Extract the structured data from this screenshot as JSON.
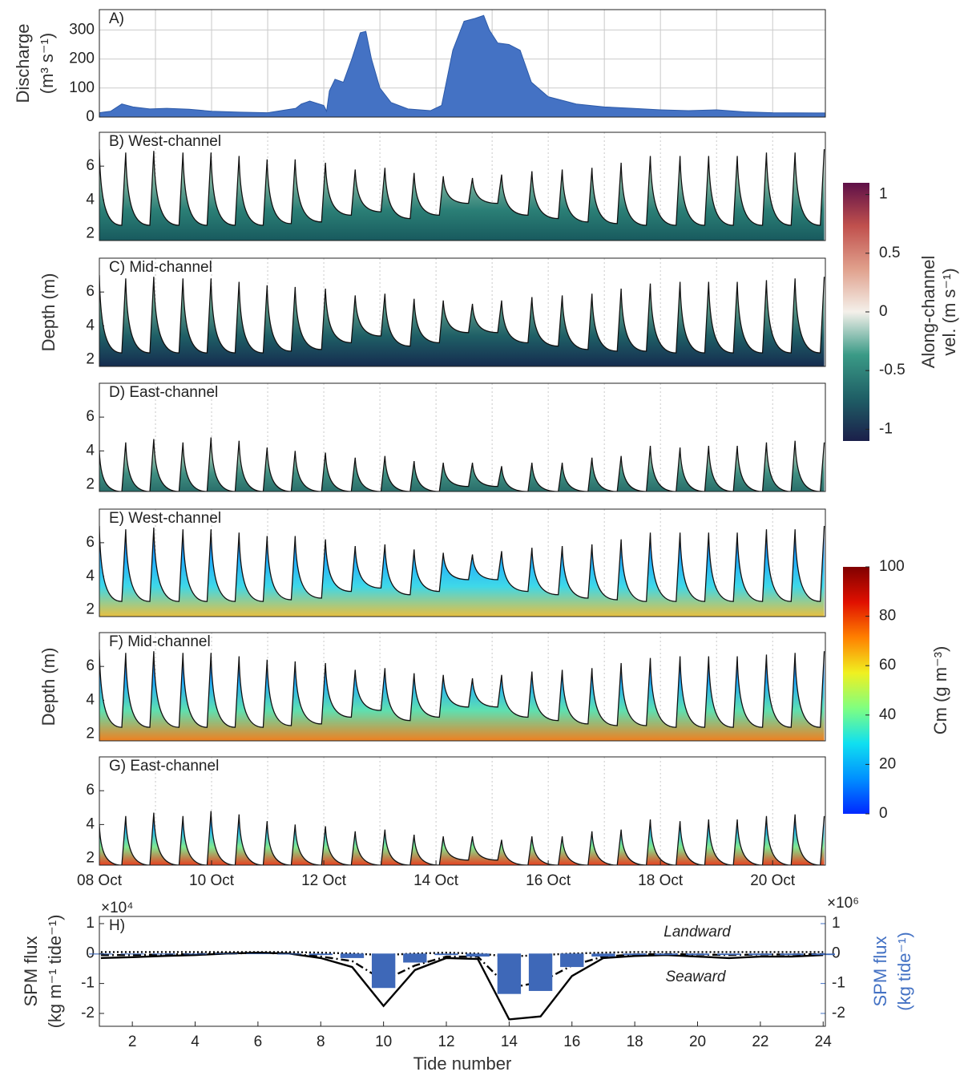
{
  "chart_data": [
    {
      "type": "area",
      "label": "A)",
      "ylabel": [
        "Discharge",
        "(m³ s⁻¹)"
      ],
      "color": "#4472c4",
      "grid": true,
      "xlim": [
        8,
        20.94
      ],
      "xgrid": [
        9,
        10,
        11,
        12,
        13,
        14,
        15,
        16,
        17,
        18,
        19,
        20
      ],
      "ylim": [
        0,
        370
      ],
      "yticks": [
        0,
        100,
        200,
        300
      ],
      "x": [
        8,
        8.2,
        8.4,
        8.6,
        8.9,
        9.2,
        9.6,
        10,
        10.5,
        11,
        11.5,
        11.6,
        11.75,
        12,
        12.05,
        12.1,
        12.2,
        12.35,
        12.5,
        12.65,
        12.75,
        12.85,
        13,
        13.2,
        13.5,
        13.9,
        14.1,
        14.3,
        14.5,
        14.7,
        14.85,
        14.95,
        15.1,
        15.3,
        15.5,
        15.7,
        16,
        16.5,
        17,
        17.5,
        18,
        18.5,
        19,
        19.5,
        20,
        20.94
      ],
      "values": [
        15,
        20,
        45,
        35,
        28,
        30,
        27,
        20,
        17,
        15,
        30,
        45,
        55,
        40,
        20,
        90,
        130,
        120,
        200,
        290,
        295,
        200,
        100,
        50,
        28,
        22,
        40,
        230,
        330,
        340,
        350,
        300,
        255,
        250,
        230,
        120,
        70,
        45,
        35,
        30,
        25,
        22,
        25,
        18,
        15,
        14
      ]
    },
    {
      "type": "profile",
      "label": "B) West-channel",
      "field_colors": [
        "#e6ece4",
        "#7fb4a0",
        "#2b7f76",
        "#185a5e"
      ],
      "xlim": [
        8,
        20.94
      ],
      "xgrid": [
        9,
        10,
        11,
        12,
        13,
        14,
        15,
        16,
        17,
        18,
        19,
        20
      ],
      "ylim": [
        1.6,
        8
      ],
      "yticks": [
        2,
        4,
        6
      ],
      "x": [
        8,
        8.4,
        8.47,
        8.9,
        8.97,
        9.42,
        9.49,
        9.92,
        9.99,
        10.42,
        10.49,
        10.92,
        10.99,
        11.42,
        11.49,
        11.96,
        12.03,
        12.49,
        12.56,
        13.02,
        13.09,
        13.54,
        13.61,
        14.06,
        14.13,
        14.58,
        14.65,
        15.1,
        15.17,
        15.64,
        15.71,
        16.18,
        16.25,
        16.71,
        16.78,
        17.23,
        17.3,
        17.75,
        17.82,
        18.28,
        18.35,
        18.79,
        18.86,
        19.3,
        19.37,
        19.82,
        19.89,
        20.33,
        20.4,
        20.85,
        20.92
      ],
      "values": [
        7.0,
        2.5,
        6.8,
        2.5,
        6.9,
        2.5,
        6.8,
        2.5,
        6.8,
        2.5,
        6.6,
        2.5,
        6.4,
        2.6,
        6.4,
        2.7,
        6.2,
        3.1,
        5.8,
        3.3,
        5.9,
        2.9,
        5.6,
        3.1,
        5.4,
        3.8,
        5.3,
        3.8,
        5.5,
        3.1,
        5.7,
        2.9,
        5.8,
        2.7,
        5.9,
        2.6,
        6.2,
        2.5,
        6.6,
        2.5,
        6.6,
        2.5,
        6.6,
        2.5,
        6.6,
        2.5,
        6.8,
        2.5,
        6.8,
        2.5,
        7.0
      ]
    },
    {
      "type": "profile",
      "label": "C) Mid-channel",
      "ylabel": "Depth (m)",
      "field_colors": [
        "#dde8df",
        "#5d9c8a",
        "#1f5f66",
        "#152c4f"
      ],
      "xlim": [
        8,
        20.94
      ],
      "xgrid": [
        9,
        10,
        11,
        12,
        13,
        14,
        15,
        16,
        17,
        18,
        19,
        20
      ],
      "ylim": [
        1.6,
        8
      ],
      "yticks": [
        2,
        4,
        6
      ],
      "x": [
        8,
        8.4,
        8.47,
        8.9,
        8.97,
        9.42,
        9.49,
        9.92,
        9.99,
        10.42,
        10.49,
        10.92,
        10.99,
        11.42,
        11.49,
        11.96,
        12.03,
        12.49,
        12.56,
        13.02,
        13.09,
        13.54,
        13.61,
        14.06,
        14.13,
        14.58,
        14.65,
        15.1,
        15.17,
        15.64,
        15.71,
        16.18,
        16.25,
        16.71,
        16.78,
        17.23,
        17.3,
        17.75,
        17.82,
        18.28,
        18.35,
        18.79,
        18.86,
        19.3,
        19.37,
        19.82,
        19.89,
        20.33,
        20.4,
        20.85,
        20.92
      ],
      "values": [
        7.0,
        2.4,
        6.8,
        2.4,
        6.9,
        2.4,
        6.8,
        2.4,
        6.8,
        2.4,
        6.6,
        2.4,
        6.4,
        2.5,
        6.3,
        2.6,
        6.2,
        3.0,
        5.8,
        3.4,
        5.9,
        2.8,
        5.6,
        3.0,
        5.5,
        3.6,
        5.3,
        3.6,
        5.5,
        3.0,
        5.7,
        2.8,
        5.8,
        2.6,
        5.9,
        2.5,
        6.2,
        2.5,
        6.5,
        2.4,
        6.6,
        2.4,
        6.6,
        2.4,
        6.6,
        2.4,
        6.7,
        2.4,
        6.8,
        2.4,
        6.9
      ]
    },
    {
      "type": "profile",
      "label": "D) East-channel",
      "field_colors": [
        "#e4ebe2",
        "#9fc4b0",
        "#3f8f82",
        "#2a6e6a"
      ],
      "xlim": [
        8,
        20.94
      ],
      "xgrid": [
        9,
        10,
        11,
        12,
        13,
        14,
        15,
        16,
        17,
        18,
        19,
        20
      ],
      "ylim": [
        1.6,
        8
      ],
      "yticks": [
        2,
        4,
        6
      ],
      "x": [
        8,
        8.4,
        8.47,
        8.9,
        8.97,
        9.42,
        9.49,
        9.92,
        9.99,
        10.42,
        10.49,
        10.92,
        10.99,
        11.42,
        11.49,
        11.96,
        12.03,
        12.49,
        12.56,
        13.02,
        13.09,
        13.54,
        13.61,
        14.06,
        14.13,
        14.58,
        14.65,
        15.1,
        15.17,
        15.64,
        15.71,
        16.18,
        16.25,
        16.71,
        16.78,
        17.23,
        17.3,
        17.75,
        17.82,
        18.28,
        18.35,
        18.79,
        18.86,
        19.3,
        19.37,
        19.82,
        19.89,
        20.33,
        20.4,
        20.85,
        20.92
      ],
      "values": [
        4.0,
        1.6,
        4.5,
        1.6,
        4.7,
        1.6,
        4.5,
        1.6,
        4.8,
        1.6,
        4.6,
        1.6,
        4.2,
        1.6,
        4.0,
        1.6,
        3.9,
        1.6,
        3.6,
        1.6,
        3.7,
        1.6,
        3.4,
        1.6,
        3.3,
        1.9,
        3.3,
        1.9,
        3.1,
        1.6,
        3.3,
        1.6,
        3.3,
        1.6,
        3.6,
        1.6,
        3.7,
        1.6,
        4.3,
        1.6,
        4.2,
        1.6,
        4.3,
        1.6,
        4.3,
        1.6,
        4.5,
        1.6,
        4.6,
        1.6,
        4.5
      ]
    },
    {
      "type": "profile",
      "label": "E) West-channel",
      "field_colors": [
        "#1c5cff",
        "#1ea8ff",
        "#3fd8e8",
        "#e8c040"
      ],
      "xlim": [
        8,
        20.94
      ],
      "xgrid": [
        9,
        10,
        11,
        12,
        13,
        14,
        15,
        16,
        17,
        18,
        19,
        20
      ],
      "ylim": [
        1.6,
        8
      ],
      "yticks": [
        2,
        4,
        6
      ],
      "x": [
        8,
        8.4,
        8.47,
        8.9,
        8.97,
        9.42,
        9.49,
        9.92,
        9.99,
        10.42,
        10.49,
        10.92,
        10.99,
        11.42,
        11.49,
        11.96,
        12.03,
        12.49,
        12.56,
        13.02,
        13.09,
        13.54,
        13.61,
        14.06,
        14.13,
        14.58,
        14.65,
        15.1,
        15.17,
        15.64,
        15.71,
        16.18,
        16.25,
        16.71,
        16.78,
        17.23,
        17.3,
        17.75,
        17.82,
        18.28,
        18.35,
        18.79,
        18.86,
        19.3,
        19.37,
        19.82,
        19.89,
        20.33,
        20.4,
        20.85,
        20.92
      ],
      "values": [
        7.0,
        2.5,
        6.8,
        2.5,
        6.9,
        2.5,
        6.8,
        2.5,
        6.8,
        2.5,
        6.6,
        2.5,
        6.4,
        2.6,
        6.4,
        2.7,
        6.2,
        3.1,
        5.8,
        3.3,
        5.9,
        2.9,
        5.6,
        3.1,
        5.4,
        3.8,
        5.3,
        3.8,
        5.5,
        3.1,
        5.7,
        2.9,
        5.8,
        2.7,
        5.9,
        2.6,
        6.2,
        2.5,
        6.6,
        2.5,
        6.6,
        2.5,
        6.6,
        2.5,
        6.6,
        2.5,
        6.8,
        2.5,
        6.8,
        2.5,
        7.0
      ]
    },
    {
      "type": "profile",
      "label": "F) Mid-channel",
      "ylabel": "Depth (m)",
      "field_colors": [
        "#1c5cff",
        "#1ea8ff",
        "#5fe0b0",
        "#f08020"
      ],
      "xlim": [
        8,
        20.94
      ],
      "xgrid": [
        9,
        10,
        11,
        12,
        13,
        14,
        15,
        16,
        17,
        18,
        19,
        20
      ],
      "ylim": [
        1.6,
        8
      ],
      "yticks": [
        2,
        4,
        6
      ],
      "x": [
        8,
        8.4,
        8.47,
        8.9,
        8.97,
        9.42,
        9.49,
        9.92,
        9.99,
        10.42,
        10.49,
        10.92,
        10.99,
        11.42,
        11.49,
        11.96,
        12.03,
        12.49,
        12.56,
        13.02,
        13.09,
        13.54,
        13.61,
        14.06,
        14.13,
        14.58,
        14.65,
        15.1,
        15.17,
        15.64,
        15.71,
        16.18,
        16.25,
        16.71,
        16.78,
        17.23,
        17.3,
        17.75,
        17.82,
        18.28,
        18.35,
        18.79,
        18.86,
        19.3,
        19.37,
        19.82,
        19.89,
        20.33,
        20.4,
        20.85,
        20.92
      ],
      "values": [
        7.0,
        2.4,
        6.8,
        2.4,
        6.9,
        2.4,
        6.8,
        2.4,
        6.8,
        2.4,
        6.6,
        2.4,
        6.4,
        2.5,
        6.3,
        2.6,
        6.2,
        3.0,
        5.8,
        3.4,
        5.9,
        2.8,
        5.6,
        3.0,
        5.5,
        3.6,
        5.3,
        3.6,
        5.5,
        3.0,
        5.7,
        2.8,
        5.8,
        2.6,
        5.9,
        2.5,
        6.2,
        2.5,
        6.5,
        2.4,
        6.6,
        2.4,
        6.6,
        2.4,
        6.6,
        2.4,
        6.7,
        2.4,
        6.8,
        2.4,
        6.9
      ]
    },
    {
      "type": "profile",
      "label": "G) East-channel",
      "field_colors": [
        "#1c5cff",
        "#22b8ff",
        "#80e890",
        "#e84020"
      ],
      "xlim": [
        8,
        20.94
      ],
      "xgrid": [
        9,
        10,
        11,
        12,
        13,
        14,
        15,
        16,
        17,
        18,
        19,
        20
      ],
      "ylim": [
        1.6,
        8
      ],
      "yticks": [
        2,
        4,
        6
      ],
      "xticks": [
        {
          "value": 8,
          "label": "08 Oct"
        },
        {
          "value": 10,
          "label": "10 Oct"
        },
        {
          "value": 12,
          "label": "12 Oct"
        },
        {
          "value": 14,
          "label": "14 Oct"
        },
        {
          "value": 16,
          "label": "16 Oct"
        },
        {
          "value": 18,
          "label": "18 Oct"
        },
        {
          "value": 20,
          "label": "20 Oct"
        }
      ],
      "x": [
        8,
        8.4,
        8.47,
        8.9,
        8.97,
        9.42,
        9.49,
        9.92,
        9.99,
        10.42,
        10.49,
        10.92,
        10.99,
        11.42,
        11.49,
        11.96,
        12.03,
        12.49,
        12.56,
        13.02,
        13.09,
        13.54,
        13.61,
        14.06,
        14.13,
        14.58,
        14.65,
        15.1,
        15.17,
        15.64,
        15.71,
        16.18,
        16.25,
        16.71,
        16.78,
        17.23,
        17.3,
        17.75,
        17.82,
        18.28,
        18.35,
        18.79,
        18.86,
        19.3,
        19.37,
        19.82,
        19.89,
        20.33,
        20.4,
        20.85,
        20.92
      ],
      "values": [
        4.0,
        1.6,
        4.5,
        1.6,
        4.7,
        1.6,
        4.5,
        1.6,
        4.8,
        1.6,
        4.6,
        1.6,
        4.2,
        1.6,
        4.0,
        1.6,
        3.9,
        1.6,
        3.6,
        1.6,
        3.7,
        1.6,
        3.4,
        1.6,
        3.3,
        1.9,
        3.3,
        1.9,
        3.1,
        1.6,
        3.3,
        1.6,
        3.3,
        1.6,
        3.6,
        1.6,
        3.7,
        1.6,
        4.3,
        1.6,
        4.2,
        1.6,
        4.3,
        1.6,
        4.3,
        1.6,
        4.5,
        1.6,
        4.6,
        1.6,
        4.5
      ]
    },
    {
      "type": "combo",
      "label": "H)",
      "xlabel": "Tide number",
      "ylabel": [
        "SPM flux",
        "(kg m⁻¹ tide⁻¹)"
      ],
      "y2label": [
        "SPM flux",
        "(kg tide⁻¹)"
      ],
      "y_multiplier": "×10⁴",
      "y2_multiplier": "×10⁶",
      "y2color": "#4472c4",
      "annotations": [
        "Landward",
        "Seaward"
      ],
      "xlim": [
        0.95,
        24.07
      ],
      "xticks": [
        2,
        4,
        6,
        8,
        10,
        12,
        14,
        16,
        18,
        20,
        22,
        24
      ],
      "ylim": [
        -2.43,
        1.24
      ],
      "yticks": [
        -2,
        -1,
        0,
        1
      ],
      "y2lim": [
        -2.43,
        1.24
      ],
      "y2ticks": [
        -2,
        -1,
        0,
        1
      ],
      "x": [
        1,
        2,
        3,
        4,
        5,
        6,
        7,
        8,
        9,
        10,
        11,
        12,
        13,
        14,
        15,
        16,
        17,
        18,
        19,
        20,
        21,
        22,
        23,
        24
      ],
      "series": [
        {
          "style": "solid",
          "color": "#000000",
          "values": [
            -0.15,
            -0.12,
            -0.08,
            -0.05,
            0.0,
            0.03,
            0.0,
            -0.15,
            -0.45,
            -1.75,
            -0.55,
            -0.15,
            -0.18,
            -2.2,
            -2.1,
            -0.75,
            -0.15,
            -0.08,
            -0.05,
            -0.1,
            -0.15,
            -0.1,
            -0.1,
            -0.05
          ]
        },
        {
          "style": "dashdot",
          "color": "#000000",
          "values": [
            -0.05,
            -0.05,
            -0.03,
            -0.02,
            0.0,
            0.02,
            0.0,
            -0.1,
            -0.25,
            -0.9,
            -0.4,
            -0.1,
            -0.1,
            -1.15,
            -0.95,
            -0.4,
            -0.1,
            -0.03,
            -0.02,
            -0.03,
            -0.05,
            -0.03,
            -0.03,
            -0.02
          ]
        },
        {
          "style": "dotted",
          "color": "#000000",
          "values": [
            0.05,
            0.05,
            0.05,
            0.05,
            0.05,
            0.05,
            0.05,
            0.03,
            0.0,
            -0.05,
            0.0,
            0.03,
            0.0,
            -0.1,
            -0.05,
            0.0,
            0.03,
            0.05,
            0.05,
            0.05,
            0.05,
            0.05,
            0.05,
            0.05
          ]
        },
        {
          "style": "bar",
          "axis": "y2",
          "color": "#3e68b8",
          "values": [
            -0.03,
            -0.03,
            -0.03,
            -0.03,
            -0.02,
            -0.02,
            -0.03,
            -0.05,
            -0.15,
            -1.15,
            -0.3,
            -0.05,
            -0.1,
            -1.35,
            -1.25,
            -0.45,
            -0.1,
            -0.05,
            -0.05,
            -0.05,
            -0.05,
            -0.05,
            -0.05,
            -0.05
          ]
        }
      ]
    },
    {
      "type": "colorbar",
      "label": [
        "Along-channel",
        "vel. (m s⁻¹)"
      ],
      "colors": [
        "#1b1f4a",
        "#1f5f66",
        "#3a9a86",
        "#f4f0ea",
        "#e0a08c",
        "#c0504d",
        "#5e1048"
      ],
      "clim": [
        -1.1,
        1.1
      ],
      "ticks": [
        -1,
        -0.5,
        0,
        0.5,
        1
      ]
    },
    {
      "type": "colorbar",
      "label": [
        "Cm (g m⁻³)"
      ],
      "colors": [
        "#0028ff",
        "#0090ff",
        "#10e0f0",
        "#80ff80",
        "#f0f020",
        "#ff8000",
        "#e01000",
        "#800000"
      ],
      "clim": [
        0,
        100
      ],
      "ticks": [
        0,
        20,
        40,
        60,
        80,
        100
      ]
    }
  ]
}
